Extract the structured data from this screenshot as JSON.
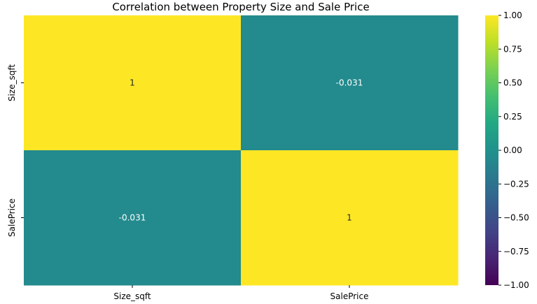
{
  "chart_data": {
    "type": "heatmap",
    "title": "Correlation between Property Size and Sale Price",
    "x_categories": [
      "Size_sqft",
      "SalePrice"
    ],
    "y_categories": [
      "Size_sqft",
      "SalePrice"
    ],
    "values": [
      [
        1,
        -0.031
      ],
      [
        -0.031,
        1
      ]
    ],
    "annotations": [
      [
        "1",
        "-0.031"
      ],
      [
        "-0.031",
        "1"
      ]
    ],
    "colormap": "viridis",
    "vmin": -1,
    "vmax": 1,
    "colorbar_ticks": [
      1.0,
      0.75,
      0.5,
      0.25,
      0.0,
      -0.25,
      -0.5,
      -0.75,
      -1.0
    ],
    "colorbar_tick_labels": [
      "1.00",
      "0.75",
      "0.50",
      "0.25",
      "0.00",
      "−0.25",
      "−0.50",
      "−0.75",
      "−1.00"
    ],
    "cell_colors": [
      [
        "#fde725",
        "#238a8d"
      ],
      [
        "#238a8d",
        "#fde725"
      ]
    ],
    "annotation_colors": [
      [
        "#262626",
        "#ffffff"
      ],
      [
        "#ffffff",
        "#262626"
      ]
    ]
  }
}
